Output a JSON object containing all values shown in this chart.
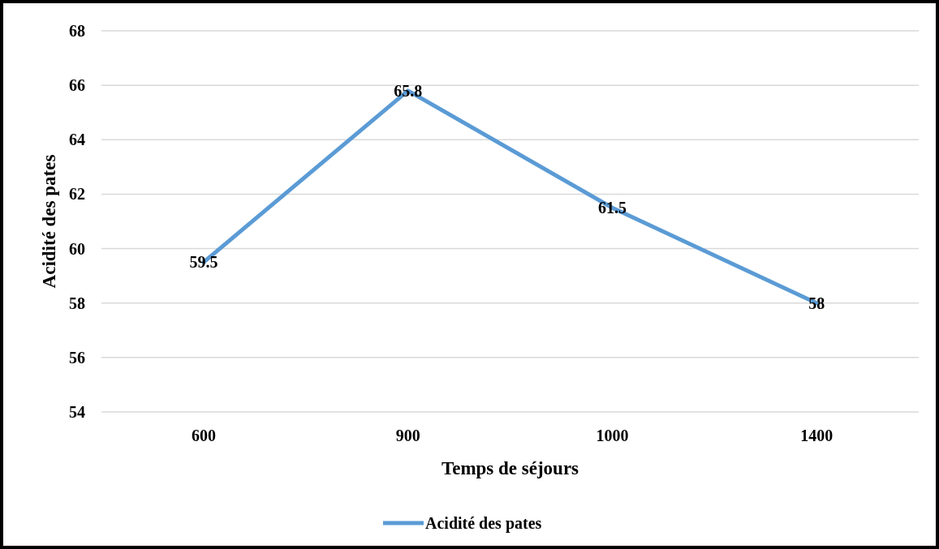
{
  "chart_data": {
    "type": "line",
    "xlabel": "Temps de séjours",
    "ylabel": "Acidité des pates",
    "categories": [
      "600",
      "900",
      "1000",
      "1400"
    ],
    "series": [
      {
        "name": "Acidité des pates",
        "color": "#5b9bd5",
        "values": [
          59.5,
          65.8,
          61.5,
          58
        ]
      }
    ],
    "ylim": [
      54,
      68
    ],
    "yticks": [
      54,
      56,
      58,
      60,
      62,
      64,
      66,
      68
    ],
    "grid": "y",
    "legend": "bottom",
    "data_labels": true,
    "marker": "none",
    "line_style": "solid"
  }
}
